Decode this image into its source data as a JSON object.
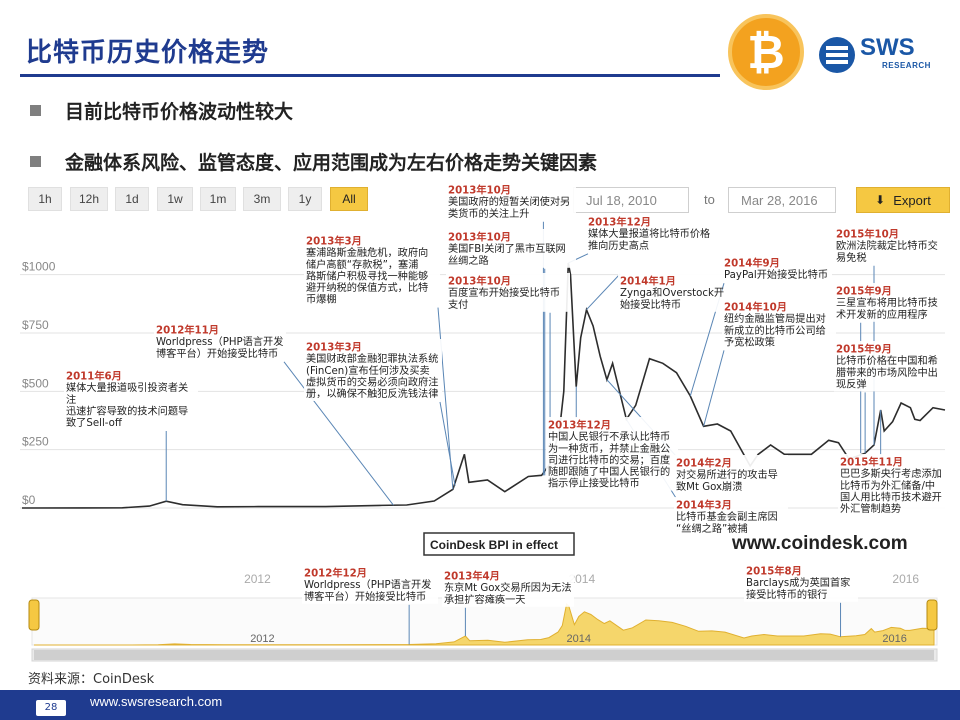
{
  "header": {
    "title": "比特币历史价格走势",
    "bullets": [
      "目前比特币价格波动性较大",
      "金融体系风险、监管态度、应用范围成为左右价格走势关键因素"
    ]
  },
  "logos": {
    "btc_symbol": "₿",
    "sws_name": "SWS",
    "sws_sub": "RESEARCH"
  },
  "toolbar": {
    "ranges": [
      "1h",
      "12h",
      "1d",
      "1w",
      "1m",
      "3m",
      "1y",
      "All"
    ],
    "active_range": "All",
    "date_from": "Jul 18, 2010",
    "to_label": "to",
    "date_to": "Mar 28, 2016",
    "export_label": "Export"
  },
  "chart_data": {
    "type": "line",
    "series_name": "",
    "y_ticks": [
      "$0",
      "$250",
      "$500",
      "$750",
      "$1000"
    ],
    "ylim": [
      0,
      1050
    ],
    "grid": true,
    "x_labels_main": [
      "2012",
      "2014",
      "2016"
    ],
    "x_labels_nav": [
      "2012",
      "2014",
      "2016"
    ],
    "points": [
      [
        "2010-07-18",
        0.1
      ],
      [
        "2010-12-01",
        0.3
      ],
      [
        "2011-03-01",
        1
      ],
      [
        "2011-05-01",
        8
      ],
      [
        "2011-06-08",
        29
      ],
      [
        "2011-07-15",
        14
      ],
      [
        "2011-10-01",
        5
      ],
      [
        "2012-01-01",
        6
      ],
      [
        "2012-06-01",
        6
      ],
      [
        "2012-10-01",
        11
      ],
      [
        "2012-12-01",
        13
      ],
      [
        "2013-02-01",
        30
      ],
      [
        "2013-03-15",
        80
      ],
      [
        "2013-04-10",
        230
      ],
      [
        "2013-04-20",
        110
      ],
      [
        "2013-06-01",
        120
      ],
      [
        "2013-07-10",
        70
      ],
      [
        "2013-09-01",
        135
      ],
      [
        "2013-10-01",
        140
      ],
      [
        "2013-10-20",
        190
      ],
      [
        "2013-11-10",
        330
      ],
      [
        "2013-11-20",
        500
      ],
      [
        "2013-11-30",
        1130
      ],
      [
        "2013-12-05",
        1000
      ],
      [
        "2013-12-18",
        520
      ],
      [
        "2013-12-28",
        730
      ],
      [
        "2014-01-10",
        850
      ],
      [
        "2014-01-25",
        780
      ],
      [
        "2014-02-10",
        650
      ],
      [
        "2014-02-25",
        550
      ],
      [
        "2014-03-10",
        620
      ],
      [
        "2014-04-10",
        380
      ],
      [
        "2014-05-01",
        440
      ],
      [
        "2014-06-01",
        640
      ],
      [
        "2014-07-01",
        620
      ],
      [
        "2014-08-01",
        580
      ],
      [
        "2014-09-01",
        480
      ],
      [
        "2014-10-01",
        350
      ],
      [
        "2014-11-01",
        360
      ],
      [
        "2014-12-01",
        330
      ],
      [
        "2015-01-14",
        180
      ],
      [
        "2015-02-01",
        230
      ],
      [
        "2015-03-01",
        270
      ],
      [
        "2015-04-01",
        230
      ],
      [
        "2015-06-01",
        230
      ],
      [
        "2015-07-10",
        290
      ],
      [
        "2015-08-01",
        280
      ],
      [
        "2015-08-25",
        210
      ],
      [
        "2015-09-30",
        235
      ],
      [
        "2015-10-20",
        270
      ],
      [
        "2015-11-04",
        420
      ],
      [
        "2015-11-12",
        330
      ],
      [
        "2015-12-01",
        370
      ],
      [
        "2015-12-20",
        450
      ],
      [
        "2016-01-10",
        430
      ],
      [
        "2016-01-20",
        380
      ],
      [
        "2016-02-01",
        375
      ],
      [
        "2016-03-01",
        430
      ],
      [
        "2016-03-28",
        420
      ]
    ]
  },
  "annotations": [
    {
      "id": "a2011-06",
      "date": "2011年6月",
      "text": "媒体大量报道吸引投资者关注\n迅速扩容导致的技术问题导致了Sell-off"
    },
    {
      "id": "a2012-11",
      "date": "2012年11月",
      "text": "Worldpress（PHP语言开发博客平台）开始接受比特币"
    },
    {
      "id": "a2013-03a",
      "date": "2013年3月",
      "text": "塞浦路斯金融危机，政府向储户高额“存款税”，塞浦路斯储户积极寻找一种能够避开纳税的保值方式，比特币爆棚"
    },
    {
      "id": "a2013-03b",
      "date": "2013年3月",
      "text": "美国财政部金融犯罪执法系统(FinCen)宣布任何涉及买卖虚拟货币的交易必须向政府注册，以确保不触犯反洗钱法律"
    },
    {
      "id": "a2013-10a",
      "date": "2013年10月",
      "text": "美国政府的短暂关闭使对另类货币的关注上升"
    },
    {
      "id": "a2013-10b",
      "date": "2013年10月",
      "text": "美国FBI关闭了黑市互联网丝绸之路"
    },
    {
      "id": "a2013-10c",
      "date": "2013年10月",
      "text": "百度宣布开始接受比特币支付"
    },
    {
      "id": "a2013-12a",
      "date": "2013年12月",
      "text": "媒体大量报道将比特币价格推向历史高点"
    },
    {
      "id": "a2014-01",
      "date": "2014年1月",
      "text": "Zynga和Overstock开始接受比特币"
    },
    {
      "id": "a2013-12b",
      "date": "2013年12月",
      "text": "中国人民银行不承认比特币为一种货币，并禁止金融公司进行比特币的交易；百度随即跟随了中国人民银行的指示停止接受比特币"
    },
    {
      "id": "a2014-09",
      "date": "2014年9月",
      "text": "PayPal开始接受比特币"
    },
    {
      "id": "a2014-10",
      "date": "2014年10月",
      "text": "纽约金融监管局提出对新成立的比特币公司给予宽松政策"
    },
    {
      "id": "a2014-02",
      "date": "2014年2月",
      "text": "对交易所进行的攻击导致Mt Gox崩溃"
    },
    {
      "id": "a2014-03",
      "date": "2014年3月",
      "text": "比特币基金会副主席因“丝绸之路”被捕"
    },
    {
      "id": "a2015-10",
      "date": "2015年10月",
      "text": "欧洲法院裁定比特币交易免税"
    },
    {
      "id": "a2015-09a",
      "date": "2015年9月",
      "text": "三星宣布将用比特币技术开发新的应用程序"
    },
    {
      "id": "a2015-09b",
      "date": "2015年9月",
      "text": "比特币价格在中国和希腊带来的市场风险中出现反弹"
    },
    {
      "id": "a2015-11",
      "date": "2015年11月",
      "text": "巴巴多斯央行考虑添加比特币为外汇储备/中国人用比特币技术避开外汇管制趋势"
    },
    {
      "id": "a2012-12",
      "date": "2012年12月",
      "text": "Worldpress（PHP语言开发博客平台）开始接受比特币"
    },
    {
      "id": "a2013-04",
      "date": "2013年4月",
      "text": "东京Mt Gox交易所因为无法承担扩容瘫痪一天"
    },
    {
      "id": "a2015-08",
      "date": "2015年8月",
      "text": "Barclays成为英国首家接受比特币的银行"
    }
  ],
  "chart_labels": {
    "bpi_label": "CoinDesk BPI in effect",
    "watermark": "www.coindesk.com"
  },
  "footer": {
    "source": "资料来源：CoinDesk",
    "url": "www.swsresearch.com",
    "page": "28"
  },
  "colors": {
    "title": "#1f3b8f",
    "annotation_date": "#c0392b",
    "line": "#2d2d2d",
    "nav_fill": "#f5c842",
    "highlight": "#f5c842",
    "btc": "#f3a21f"
  }
}
